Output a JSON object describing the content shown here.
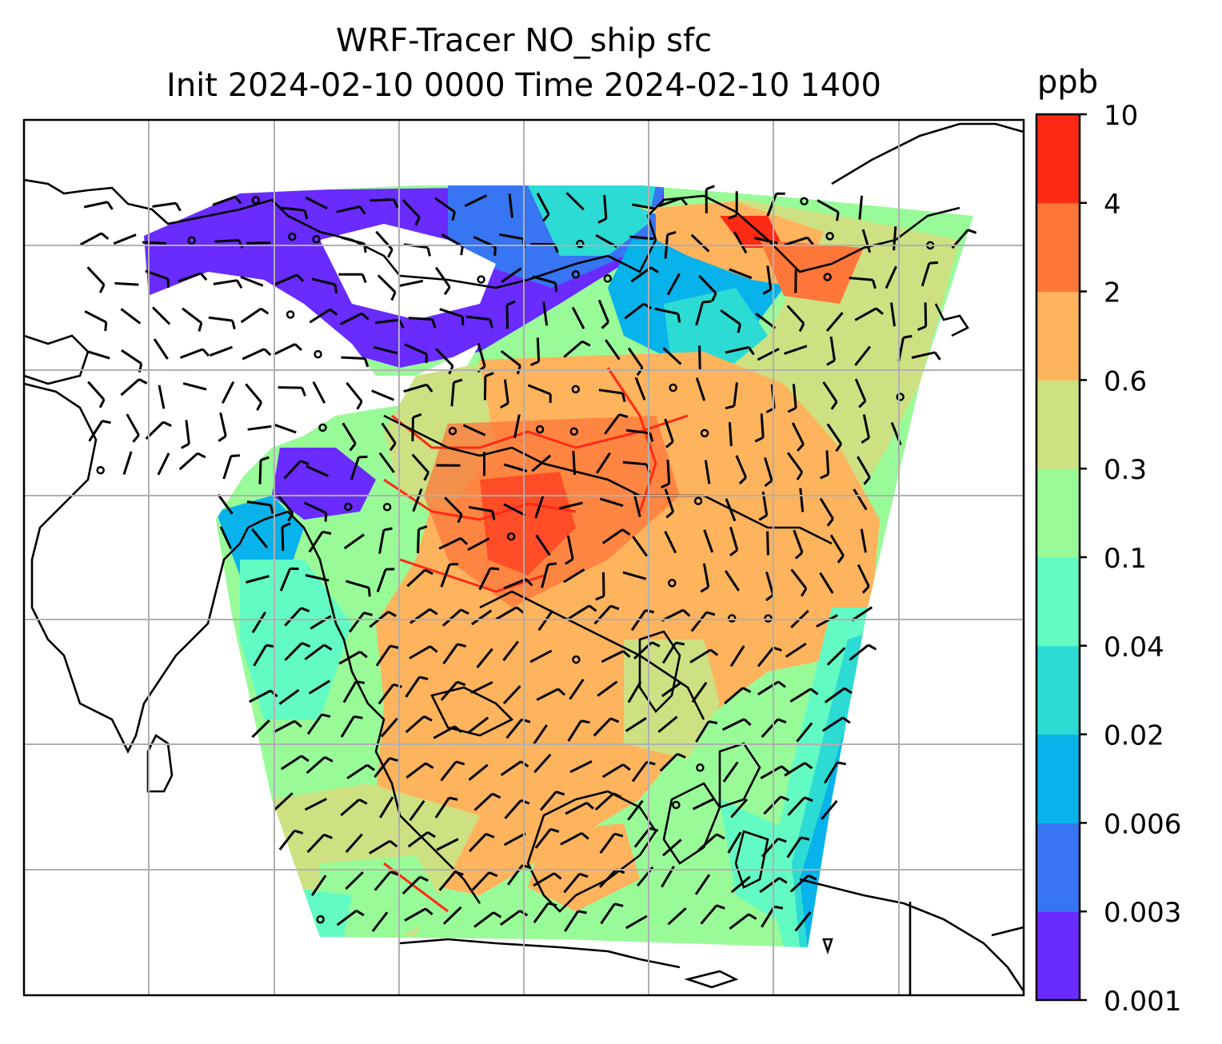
{
  "title": {
    "line1": "WRF-Tracer NO_ship sfc",
    "line2": "Init 2024-02-10 0000 Time 2024-02-10 1400"
  },
  "colorbar": {
    "unit": "ppb",
    "levels": [
      "0.001",
      "0.003",
      "0.006",
      "0.02",
      "0.04",
      "0.1",
      "0.3",
      "0.6",
      "2",
      "4",
      "10"
    ],
    "colors": [
      "#6a2bff",
      "#3775f2",
      "#08b2ea",
      "#2cdbd4",
      "#63fbc4",
      "#98fb98",
      "#cde183",
      "#feb35d",
      "#ff7639",
      "#ff2a16"
    ]
  },
  "map": {
    "variable": "NO_ship surface concentration",
    "overlay": "wind barbs",
    "gridlines": true,
    "coastlines": true
  }
}
